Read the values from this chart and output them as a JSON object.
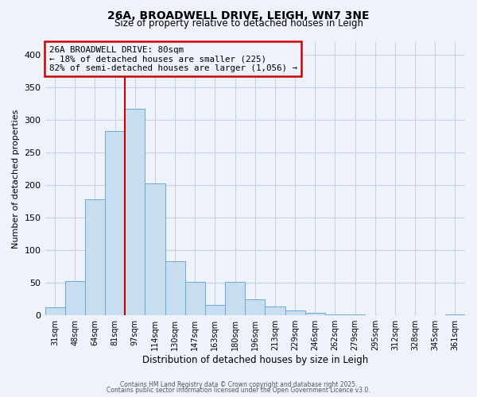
{
  "title": "26A, BROADWELL DRIVE, LEIGH, WN7 3NE",
  "subtitle": "Size of property relative to detached houses in Leigh",
  "xlabel": "Distribution of detached houses by size in Leigh",
  "ylabel": "Number of detached properties",
  "bar_labels": [
    "31sqm",
    "48sqm",
    "64sqm",
    "81sqm",
    "97sqm",
    "114sqm",
    "130sqm",
    "147sqm",
    "163sqm",
    "180sqm",
    "196sqm",
    "213sqm",
    "229sqm",
    "246sqm",
    "262sqm",
    "279sqm",
    "295sqm",
    "312sqm",
    "328sqm",
    "345sqm",
    "361sqm"
  ],
  "bar_values": [
    12,
    53,
    178,
    283,
    317,
    203,
    83,
    51,
    16,
    51,
    25,
    14,
    8,
    4,
    2,
    2,
    0,
    0,
    0,
    0,
    2
  ],
  "bar_color": "#c8ddf0",
  "bar_edge_color": "#6aaad4",
  "ylim": [
    0,
    420
  ],
  "yticks": [
    0,
    50,
    100,
    150,
    200,
    250,
    300,
    350,
    400
  ],
  "vline_color": "#cc0000",
  "vline_index": 3,
  "annotation_title": "26A BROADWELL DRIVE: 80sqm",
  "annotation_line1": "← 18% of detached houses are smaller (225)",
  "annotation_line2": "82% of semi-detached houses are larger (1,056) →",
  "annotation_box_color": "#cc0000",
  "footer_line1": "Contains HM Land Registry data © Crown copyright and database right 2025.",
  "footer_line2": "Contains public sector information licensed under the Open Government Licence v3.0.",
  "background_color": "#eef2fb",
  "grid_color": "#c8cfe8"
}
